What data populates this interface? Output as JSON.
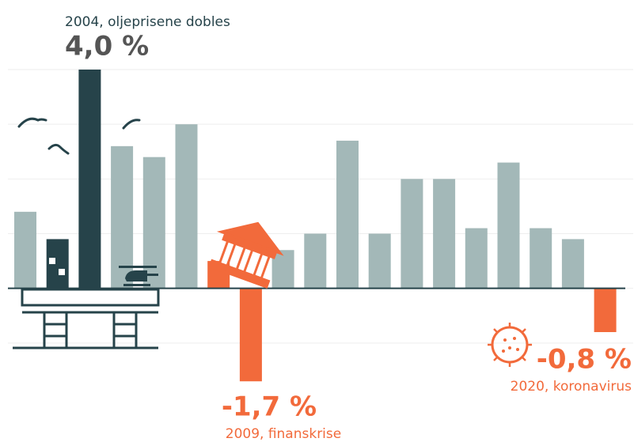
{
  "chart_data": {
    "type": "bar",
    "categories": [
      null,
      null,
      null,
      null,
      null,
      null,
      null,
      null,
      null,
      null,
      null,
      null,
      null,
      null,
      null,
      null,
      null,
      null,
      null
    ],
    "values": [
      1.4,
      0.9,
      4.0,
      2.6,
      2.4,
      3.0,
      0.5,
      -1.7,
      0.7,
      1.0,
      2.7,
      1.0,
      2.0,
      2.0,
      1.1,
      2.3,
      1.1,
      0.9,
      -0.8
    ],
    "colors": [
      "#a3b8b8",
      "#26434a",
      "#26434a",
      "#a3b8b8",
      "#a3b8b8",
      "#a3b8b8",
      "#f26a3b",
      "#f26a3b",
      "#a3b8b8",
      "#a3b8b8",
      "#a3b8b8",
      "#a3b8b8",
      "#a3b8b8",
      "#a3b8b8",
      "#a3b8b8",
      "#a3b8b8",
      "#a3b8b8",
      "#a3b8b8",
      "#f26a3b"
    ],
    "value_labels": [
      null,
      null,
      "4,0 %",
      null,
      null,
      null,
      null,
      "-1,7 %",
      null,
      null,
      null,
      null,
      null,
      null,
      null,
      null,
      null,
      null,
      "-0,8 %"
    ],
    "annotations": [
      "2004, oljeprisene dobles",
      "2009, finanskrise",
      "2020, koronavirus"
    ],
    "ylim": [
      -2,
      4
    ],
    "yticks": [
      -1,
      0,
      1,
      2,
      3,
      4
    ],
    "grid": true
  }
}
